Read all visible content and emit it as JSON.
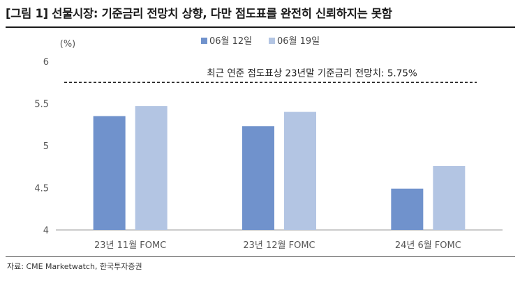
{
  "title": "[그림 1] 선물시장: 기준금리 전망치 상향, 다만 점도표를 완전히 신뢰하지는 못함",
  "source": "자료: CME Marketwatch, 한국투자증권",
  "chart_data": {
    "type": "bar",
    "unit": "(%)",
    "categories": [
      "23년 11월 FOMC",
      "23년 12월 FOMC",
      "24년 6월 FOMC"
    ],
    "series": [
      {
        "name": "06월 12일",
        "color": "#7092cc",
        "values": [
          5.35,
          5.23,
          4.49
        ]
      },
      {
        "name": "06월 19일",
        "color": "#b3c5e3",
        "values": [
          5.47,
          5.4,
          4.76
        ]
      }
    ],
    "ylim": [
      4,
      6
    ],
    "yticks": [
      "4",
      "4.5",
      "5",
      "5.5",
      "6"
    ],
    "legend_position": "top-center",
    "grid": false,
    "reference_line": {
      "value": 5.75,
      "label": "최근 연준 점도표상 23년말 기준금리 전망치: 5.75%",
      "style": "dashed"
    }
  }
}
